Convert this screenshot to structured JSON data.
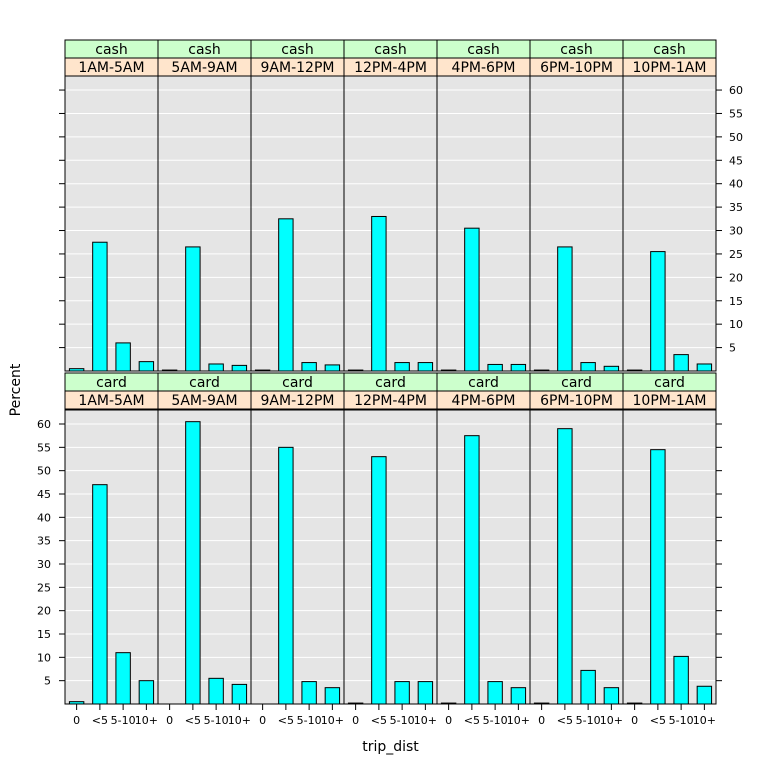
{
  "chart_data": {
    "type": "bar",
    "xlabel": "trip_dist",
    "ylabel": "Percent",
    "categories": [
      "0",
      "<5",
      "5-10",
      "10+"
    ],
    "y_ticks": [
      5,
      10,
      15,
      20,
      25,
      30,
      35,
      40,
      45,
      50,
      55,
      60
    ],
    "ylim": [
      0,
      63
    ],
    "grid": true,
    "bar_color": "#00FFFF",
    "panel_background": "#E5E5E5",
    "strip_colors": {
      "payment": "#CCFFCC",
      "time": "#FFE5CC"
    },
    "rows": [
      {
        "payment": "cash",
        "panels": [
          {
            "time": "1AM-5AM",
            "values": [
              0.5,
              27.5,
              6.0,
              2.0
            ]
          },
          {
            "time": "5AM-9AM",
            "values": [
              0.2,
              26.5,
              1.5,
              1.2
            ]
          },
          {
            "time": "9AM-12PM",
            "values": [
              0.2,
              32.5,
              1.8,
              1.3
            ]
          },
          {
            "time": "12PM-4PM",
            "values": [
              0.2,
              33.0,
              1.8,
              1.8
            ]
          },
          {
            "time": "4PM-6PM",
            "values": [
              0.2,
              30.5,
              1.4,
              1.4
            ]
          },
          {
            "time": "6PM-10PM",
            "values": [
              0.2,
              26.5,
              1.8,
              1.0
            ]
          },
          {
            "time": "10PM-1AM",
            "values": [
              0.2,
              25.5,
              3.5,
              1.5
            ]
          }
        ]
      },
      {
        "payment": "card",
        "panels": [
          {
            "time": "1AM-5AM",
            "values": [
              0.5,
              47.0,
              11.0,
              5.0
            ]
          },
          {
            "time": "5AM-9AM",
            "values": [
              0.0,
              60.5,
              5.5,
              4.2
            ]
          },
          {
            "time": "9AM-12PM",
            "values": [
              0.0,
              55.0,
              4.8,
              3.5
            ]
          },
          {
            "time": "12PM-4PM",
            "values": [
              0.2,
              53.0,
              4.8,
              4.8
            ]
          },
          {
            "time": "4PM-6PM",
            "values": [
              0.2,
              57.5,
              4.8,
              3.5
            ]
          },
          {
            "time": "6PM-10PM",
            "values": [
              0.2,
              59.0,
              7.2,
              3.5
            ]
          },
          {
            "time": "10PM-1AM",
            "values": [
              0.2,
              54.5,
              10.2,
              3.8
            ]
          }
        ]
      }
    ]
  }
}
